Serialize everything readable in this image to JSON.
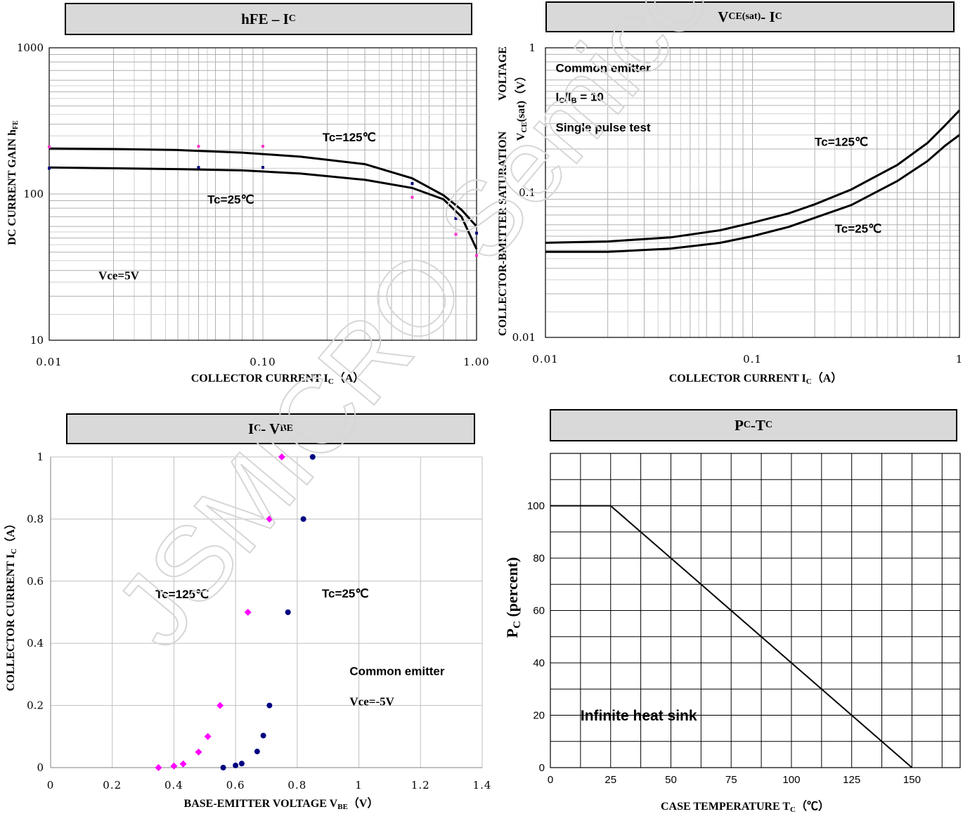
{
  "chart_data": [
    {
      "id": "hfe",
      "type": "line",
      "title": {
        "main": "hFE – I",
        "sub": "C"
      },
      "xlabel": "COLLECTOR CURRENT",
      "xunit": "I",
      "xunit_sub": "C",
      "xunit_suffix": "（A）",
      "ylabel": "DC CURRENT GAIN",
      "ylabel_sym": "h",
      "ylabel_sym_sub": "FE",
      "xscale": "log",
      "yscale": "log",
      "xlim": [
        0.01,
        1.0
      ],
      "ylim": [
        10,
        1000
      ],
      "xticks": [
        {
          "v": 0.01,
          "label": "0.01"
        },
        {
          "v": 0.1,
          "label": "0.10"
        },
        {
          "v": 1.0,
          "label": "1.00"
        }
      ],
      "yticks": [
        {
          "v": 10,
          "label": "10"
        },
        {
          "v": 100,
          "label": "100"
        },
        {
          "v": 1000,
          "label": "1000"
        }
      ],
      "grid": true,
      "annotations": [
        {
          "text": "Tc=125℃",
          "x": 0.19,
          "y": 230,
          "style": "sans"
        },
        {
          "text": "Tc=25℃",
          "x": 0.055,
          "y": 86,
          "style": "sans"
        },
        {
          "text": "Vce=5V",
          "x": 0.017,
          "y": 26,
          "style": "serif"
        }
      ],
      "series": [
        {
          "values": [
            [
              0.01,
              205
            ],
            [
              0.02,
              203
            ],
            [
              0.04,
              200
            ],
            [
              0.08,
              192
            ],
            [
              0.15,
              180
            ],
            [
              0.3,
              160
            ],
            [
              0.5,
              128
            ],
            [
              0.7,
              98
            ],
            [
              0.85,
              78
            ],
            [
              1.0,
              60
            ]
          ]
        },
        {
          "values": [
            [
              0.01,
              152
            ],
            [
              0.02,
              150
            ],
            [
              0.04,
              148
            ],
            [
              0.08,
              145
            ],
            [
              0.15,
              138
            ],
            [
              0.3,
              125
            ],
            [
              0.5,
              110
            ],
            [
              0.7,
              92
            ],
            [
              0.85,
              70
            ],
            [
              1.0,
              42
            ]
          ]
        }
      ],
      "markers": [
        {
          "color": "#ff33cc",
          "points": [
            [
              0.01,
              210
            ],
            [
              0.05,
              212
            ],
            [
              0.1,
              212
            ],
            [
              0.5,
              95
            ],
            [
              0.8,
              53
            ],
            [
              1.0,
              38
            ]
          ]
        },
        {
          "color": "#000080",
          "points": [
            [
              0.01,
              150
            ],
            [
              0.05,
              152
            ],
            [
              0.1,
              152
            ],
            [
              0.5,
              118
            ],
            [
              0.8,
              68
            ],
            [
              1.0,
              54
            ]
          ]
        }
      ]
    },
    {
      "id": "vcesat",
      "type": "line",
      "title": {
        "main": "V",
        "sub": "CE(sat)",
        "suffix": "- I",
        "sub2": "C"
      },
      "xlabel": "COLLECTOR CURRENT",
      "xunit": "I",
      "xunit_sub": "C",
      "xunit_suffix": "（A）",
      "ylabel": "COLLECTOR-BMITTER SATURATION",
      "ylabel2": "VOLTAGE",
      "ylabel_sym": "V",
      "ylabel_sym_sub": "CE",
      "ylabel_sym_suffix": "(sat)（V）",
      "xscale": "log",
      "yscale": "log",
      "xlim": [
        0.01,
        1
      ],
      "ylim": [
        0.01,
        1
      ],
      "xticks": [
        {
          "v": 0.01,
          "label": "0.01"
        },
        {
          "v": 0.1,
          "label": "0.1"
        },
        {
          "v": 1,
          "label": "1"
        }
      ],
      "yticks": [
        {
          "v": 0.01,
          "label": "0.01"
        },
        {
          "v": 0.1,
          "label": "0.1"
        },
        {
          "v": 1,
          "label": "1"
        }
      ],
      "grid": true,
      "annotations": [
        {
          "text": "Common emitter",
          "x": 0.0112,
          "y": 0.68,
          "style": "sans"
        },
        {
          "text": "Single pulse test",
          "x": 0.0112,
          "y": 0.265,
          "style": "sans"
        },
        {
          "text": "Tc=125℃",
          "x": 0.2,
          "y": 0.21,
          "style": "sans"
        },
        {
          "text": "Tc=25℃",
          "x": 0.25,
          "y": 0.053,
          "style": "sans"
        }
      ],
      "annotation_sub": {
        "pre": "I",
        "sub1": "C",
        "mid": "/I",
        "sub2": "B",
        "post": " = 10",
        "x": 0.0112,
        "y": 0.43
      },
      "series": [
        {
          "values": [
            [
              0.01,
              0.045
            ],
            [
              0.02,
              0.046
            ],
            [
              0.04,
              0.049
            ],
            [
              0.07,
              0.055
            ],
            [
              0.1,
              0.062
            ],
            [
              0.15,
              0.072
            ],
            [
              0.2,
              0.083
            ],
            [
              0.3,
              0.105
            ],
            [
              0.5,
              0.155
            ],
            [
              0.7,
              0.22
            ],
            [
              0.85,
              0.29
            ],
            [
              1.0,
              0.37
            ]
          ]
        },
        {
          "values": [
            [
              0.01,
              0.039
            ],
            [
              0.02,
              0.039
            ],
            [
              0.04,
              0.041
            ],
            [
              0.07,
              0.045
            ],
            [
              0.1,
              0.05
            ],
            [
              0.15,
              0.058
            ],
            [
              0.2,
              0.067
            ],
            [
              0.3,
              0.082
            ],
            [
              0.5,
              0.12
            ],
            [
              0.7,
              0.165
            ],
            [
              0.85,
              0.21
            ],
            [
              1.0,
              0.25
            ]
          ]
        }
      ]
    },
    {
      "id": "icvbe",
      "type": "scatter",
      "title": {
        "main": "I",
        "sub": "C",
        "suffix": "- V",
        "sub2": "BE"
      },
      "xlabel": "BASE-EMITTER VOLTAGE",
      "xunit": "V",
      "xunit_sub": "BE",
      "xunit_suffix": "（V）",
      "ylabel": "COLLECTOR CURRENT",
      "ylabel_sym": "I",
      "ylabel_sym_sub": "C",
      "ylabel_sym_suffix": "（A）",
      "xscale": "linear",
      "yscale": "linear",
      "xlim": [
        0,
        1.4
      ],
      "ylim": [
        0,
        1
      ],
      "xticks": [
        {
          "v": 0,
          "label": "0"
        },
        {
          "v": 0.2,
          "label": "0.2"
        },
        {
          "v": 0.4,
          "label": "0.4"
        },
        {
          "v": 0.6,
          "label": "0.6"
        },
        {
          "v": 0.8,
          "label": "0.8"
        },
        {
          "v": 1.0,
          "label": "1"
        },
        {
          "v": 1.2,
          "label": "1.2"
        },
        {
          "v": 1.4,
          "label": "1.4"
        }
      ],
      "yticks": [
        {
          "v": 0,
          "label": "0"
        },
        {
          "v": 0.2,
          "label": "0.2"
        },
        {
          "v": 0.4,
          "label": "0.4"
        },
        {
          "v": 0.6,
          "label": "0.6"
        },
        {
          "v": 0.8,
          "label": "0.8"
        },
        {
          "v": 1.0,
          "label": "1"
        }
      ],
      "grid": true,
      "annotations": [
        {
          "text": "Tc=125℃",
          "x": 0.34,
          "y": 0.545,
          "style": "sans"
        },
        {
          "text": "Tc=25℃",
          "x": 0.88,
          "y": 0.548,
          "style": "sans"
        },
        {
          "text": "Common emitter",
          "x": 0.97,
          "y": 0.297,
          "style": "sans"
        },
        {
          "text": "Vce=-5V",
          "x": 0.97,
          "y": 0.2,
          "style": "serif"
        }
      ],
      "series": [
        {
          "color": "#ff00ff",
          "marker": "diamond",
          "points": [
            [
              0.35,
              0
            ],
            [
              0.4,
              0.005
            ],
            [
              0.43,
              0.012
            ],
            [
              0.48,
              0.05
            ],
            [
              0.51,
              0.1
            ],
            [
              0.55,
              0.2
            ],
            [
              0.64,
              0.5
            ],
            [
              0.71,
              0.8
            ],
            [
              0.75,
              1.0
            ]
          ]
        },
        {
          "color": "#000080",
          "marker": "circle",
          "points": [
            [
              0.56,
              0
            ],
            [
              0.6,
              0.007
            ],
            [
              0.62,
              0.013
            ],
            [
              0.67,
              0.052
            ],
            [
              0.69,
              0.103
            ],
            [
              0.71,
              0.2
            ],
            [
              0.77,
              0.5
            ],
            [
              0.82,
              0.8
            ],
            [
              0.85,
              1.0
            ]
          ]
        }
      ]
    },
    {
      "id": "pctc",
      "type": "line",
      "title": {
        "main": "P",
        "sub": "C",
        "suffix": "-T",
        "sub2": "C"
      },
      "xlabel": "CASE TEMPERATURE",
      "xunit": "T",
      "xunit_sub": "C",
      "xunit_suffix": "（℃）",
      "ylabel_sym": "P",
      "ylabel_sym_sub": "C",
      "ylabel_sym_suffix": " (percent)",
      "xscale": "linear",
      "yscale": "linear",
      "xlim": [
        0,
        170
      ],
      "ylim": [
        0,
        120
      ],
      "xticks": [
        {
          "v": 0,
          "label": "0"
        },
        {
          "v": 25,
          "label": "25"
        },
        {
          "v": 50,
          "label": "50"
        },
        {
          "v": 75,
          "label": "75"
        },
        {
          "v": 100,
          "label": "100"
        },
        {
          "v": 125,
          "label": "125"
        },
        {
          "v": 150,
          "label": "150"
        }
      ],
      "yticks": [
        {
          "v": 0,
          "label": "0"
        },
        {
          "v": 20,
          "label": "20"
        },
        {
          "v": 40,
          "label": "40"
        },
        {
          "v": 60,
          "label": "60"
        },
        {
          "v": 80,
          "label": "80"
        },
        {
          "v": 100,
          "label": "100"
        }
      ],
      "grid": true,
      "annotations": [
        {
          "text": "Infinite heat sink",
          "x": 12.5,
          "y": 18,
          "style": "sans-big"
        }
      ],
      "series": [
        {
          "values": [
            [
              0,
              100
            ],
            [
              25,
              100
            ],
            [
              150,
              0
            ]
          ]
        }
      ]
    }
  ],
  "watermark": {
    "text": "JSMICRO Semiconductor"
  }
}
